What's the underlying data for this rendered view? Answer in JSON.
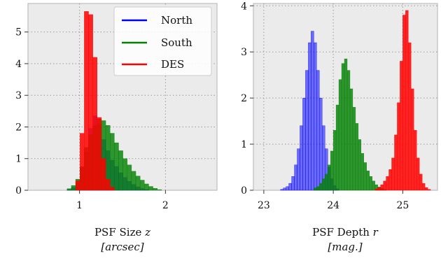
{
  "chart_data": [
    {
      "type": "bar",
      "xlabel": "PSF Size z",
      "xlabel_main": "PSF Size",
      "xlabel_var": "z",
      "xlabel_unit": "[arcsec]",
      "xlim": [
        0.4,
        2.6
      ],
      "ylim": [
        0,
        5.9
      ],
      "xticks": [
        1,
        2
      ],
      "yticks": [
        0,
        1,
        2,
        3,
        4,
        5
      ],
      "grid": true,
      "legend": "top-right",
      "bin_width": 0.05,
      "series": [
        {
          "name": "North",
          "color": "#0000ff",
          "x": [
            0.88,
            0.93,
            0.98,
            1.03,
            1.08,
            1.13,
            1.18,
            1.23,
            1.28,
            1.33,
            1.38,
            1.43,
            1.48,
            1.53,
            1.58,
            1.63,
            1.68,
            1.73,
            1.78
          ],
          "values": [
            0.02,
            0.08,
            0.25,
            0.7,
            1.2,
            1.95,
            2.35,
            2.1,
            1.6,
            1.25,
            0.95,
            0.75,
            0.55,
            0.4,
            0.28,
            0.18,
            0.1,
            0.05,
            0.02
          ]
        },
        {
          "name": "South",
          "color": "#008000",
          "x": [
            0.88,
            0.93,
            0.98,
            1.03,
            1.08,
            1.13,
            1.18,
            1.23,
            1.28,
            1.33,
            1.38,
            1.43,
            1.48,
            1.53,
            1.58,
            1.63,
            1.68,
            1.73,
            1.78,
            1.83,
            1.88,
            1.93
          ],
          "values": [
            0.05,
            0.15,
            0.35,
            0.75,
            1.35,
            1.75,
            2.05,
            2.25,
            2.2,
            2.05,
            1.8,
            1.5,
            1.25,
            1.0,
            0.8,
            0.6,
            0.45,
            0.32,
            0.2,
            0.12,
            0.06,
            0.02
          ]
        },
        {
          "name": "DES",
          "color": "#ff0000",
          "x": [
            0.98,
            1.03,
            1.08,
            1.13,
            1.18,
            1.23,
            1.28,
            1.33,
            1.38
          ],
          "values": [
            0.3,
            1.8,
            5.65,
            5.55,
            4.2,
            2.3,
            1.0,
            0.35,
            0.1
          ]
        }
      ]
    },
    {
      "type": "bar",
      "xlabel": "PSF Depth r",
      "xlabel_main": "PSF Depth",
      "xlabel_var": "r",
      "xlabel_unit": "[mag.]",
      "xlim": [
        22.85,
        25.5
      ],
      "ylim": [
        0,
        4.05
      ],
      "xticks": [
        23,
        24,
        25
      ],
      "yticks": [
        0,
        1,
        2,
        3,
        4
      ],
      "grid": true,
      "legend": "none",
      "bin_width": 0.04,
      "series": [
        {
          "name": "North",
          "color": "#0000ff",
          "x": [
            23.26,
            23.3,
            23.34,
            23.38,
            23.42,
            23.46,
            23.5,
            23.54,
            23.58,
            23.62,
            23.66,
            23.7,
            23.74,
            23.78,
            23.82,
            23.86,
            23.9,
            23.94,
            23.98,
            24.02,
            24.06
          ],
          "values": [
            0.02,
            0.05,
            0.08,
            0.15,
            0.3,
            0.55,
            0.9,
            1.4,
            2.0,
            2.6,
            3.2,
            3.45,
            3.2,
            2.6,
            2.0,
            1.4,
            0.9,
            0.5,
            0.25,
            0.1,
            0.03
          ]
        },
        {
          "name": "South",
          "color": "#008000",
          "x": [
            23.74,
            23.78,
            23.82,
            23.86,
            23.9,
            23.94,
            23.98,
            24.02,
            24.06,
            24.1,
            24.14,
            24.18,
            24.22,
            24.26,
            24.3,
            24.34,
            24.38,
            24.42,
            24.46,
            24.5,
            24.54,
            24.58,
            24.62,
            24.66,
            24.7,
            24.74
          ],
          "values": [
            0.05,
            0.08,
            0.15,
            0.25,
            0.35,
            0.55,
            0.85,
            1.3,
            1.85,
            2.4,
            2.75,
            2.85,
            2.6,
            2.2,
            1.8,
            1.45,
            1.1,
            0.8,
            0.6,
            0.42,
            0.3,
            0.2,
            0.12,
            0.07,
            0.04,
            0.02
          ]
        },
        {
          "name": "DES",
          "color": "#ff0000",
          "x": [
            24.62,
            24.66,
            24.7,
            24.74,
            24.78,
            24.82,
            24.86,
            24.9,
            24.94,
            24.98,
            25.02,
            25.06,
            25.1,
            25.14,
            25.18,
            25.22,
            25.26,
            25.3,
            25.34,
            25.38
          ],
          "values": [
            0.03,
            0.06,
            0.12,
            0.2,
            0.3,
            0.45,
            0.7,
            1.2,
            1.9,
            2.8,
            3.8,
            3.9,
            3.2,
            2.2,
            1.3,
            0.7,
            0.35,
            0.15,
            0.06,
            0.02
          ]
        }
      ]
    }
  ]
}
